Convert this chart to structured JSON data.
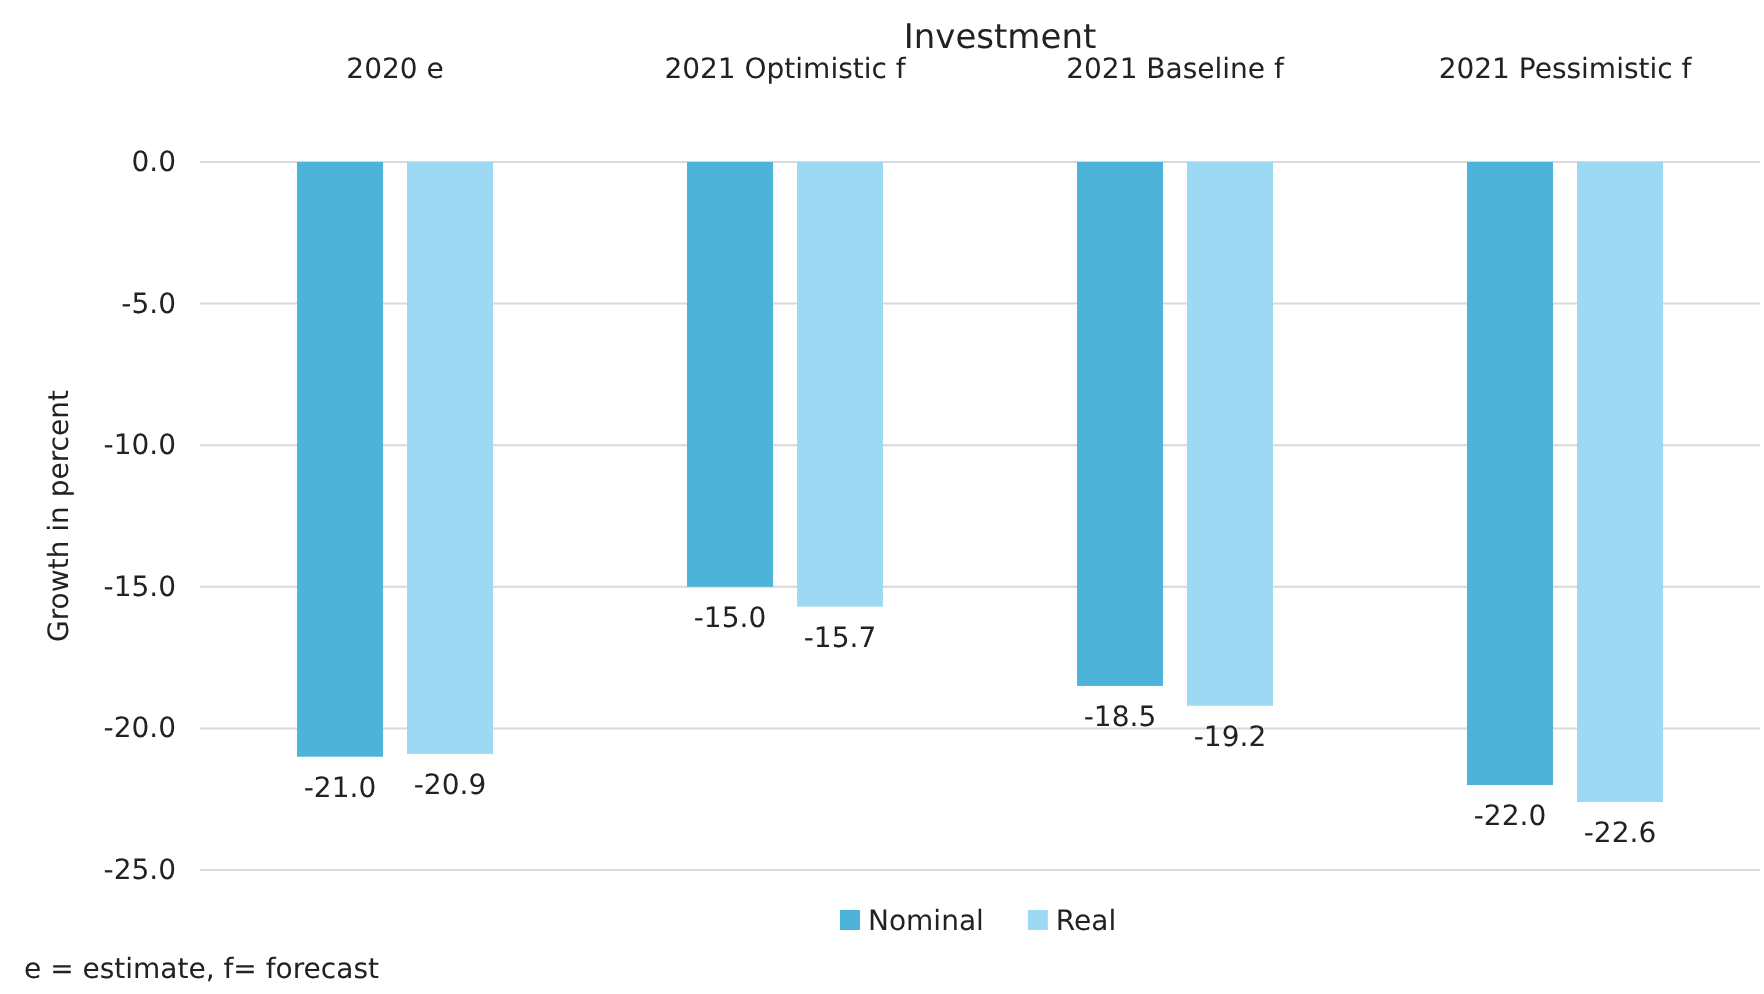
{
  "chart_data": {
    "type": "bar",
    "title": "Investment",
    "ylabel": "Growth in percent",
    "categories": [
      "2020 e",
      "2021 Optimistic f",
      "2021 Baseline f",
      "2021 Pessimistic f"
    ],
    "series": [
      {
        "name": "Nominal",
        "color": "#4eb3d8",
        "values": [
          -21.0,
          -15.0,
          -18.5,
          -22.0
        ],
        "value_labels": [
          "-21.0",
          "-15.0",
          "-18.5",
          "-22.0"
        ]
      },
      {
        "name": "Real",
        "color": "#9dd9f3",
        "values": [
          -20.9,
          -15.7,
          -19.2,
          -22.6
        ],
        "value_labels": [
          "-20.9",
          "-15.7",
          "-19.2",
          "-22.6"
        ]
      }
    ],
    "ylim": [
      -25,
      0
    ],
    "yticks": [
      {
        "value": 0,
        "label": "0.0"
      },
      {
        "value": -5,
        "label": "-5.0"
      },
      {
        "value": -10,
        "label": "-10.0"
      },
      {
        "value": -15,
        "label": "-15.0"
      },
      {
        "value": -20,
        "label": "-20.0"
      },
      {
        "value": -25,
        "label": "-25.0"
      }
    ],
    "grid": "y",
    "legend": "bottom",
    "annotations": [
      "e = estimate, f= forecast"
    ]
  }
}
